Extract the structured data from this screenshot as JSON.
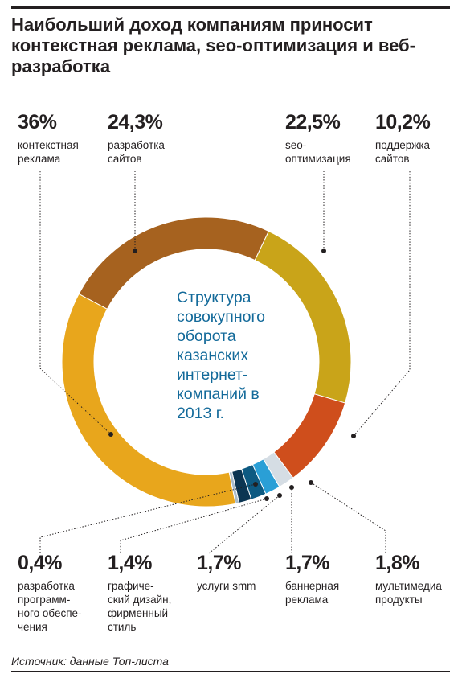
{
  "title": "Наибольший доход компаниям приносит контекстная реклама, seo-оптимизация и веб-разработка",
  "source": "Источник: данные Топ-листа",
  "chart_data": {
    "type": "pie",
    "donut": true,
    "center_text": "Структура\nсовокупного\nоборота\nказанских\nинтернет-\nкомпаний в\n2013 г.",
    "slices": [
      {
        "label": "разработка\nсайтов",
        "value": 24.3,
        "value_label": "24,3%",
        "color": "#a6621f"
      },
      {
        "label": "seo-\nоптимизация",
        "value": 22.5,
        "value_label": "22,5%",
        "color": "#c9a419"
      },
      {
        "label": "поддержка\nсайтов",
        "value": 10.2,
        "value_label": "10,2%",
        "color": "#cf4e1c"
      },
      {
        "label": "мультимедиа\nпродукты",
        "value": 1.8,
        "value_label": "1,8%",
        "color": "#d5dde4"
      },
      {
        "label": "баннерная\nреклама",
        "value": 1.7,
        "value_label": "1,7%",
        "color": "#2a9fd6"
      },
      {
        "label": "услуги smm",
        "value": 1.7,
        "value_label": "1,7%",
        "color": "#0d5a82"
      },
      {
        "label": "графиче-\nский дизайн,\nфирменный\nстиль",
        "value": 1.4,
        "value_label": "1,4%",
        "color": "#0b3552"
      },
      {
        "label": "разработка\nпрограмм-\nного обеспе-\nчения",
        "value": 0.4,
        "value_label": "0,4%",
        "color": "#a9bccb"
      },
      {
        "label": "контекстная\nреклама",
        "value": 36,
        "value_label": "36%",
        "color": "#e8a61c"
      }
    ]
  }
}
